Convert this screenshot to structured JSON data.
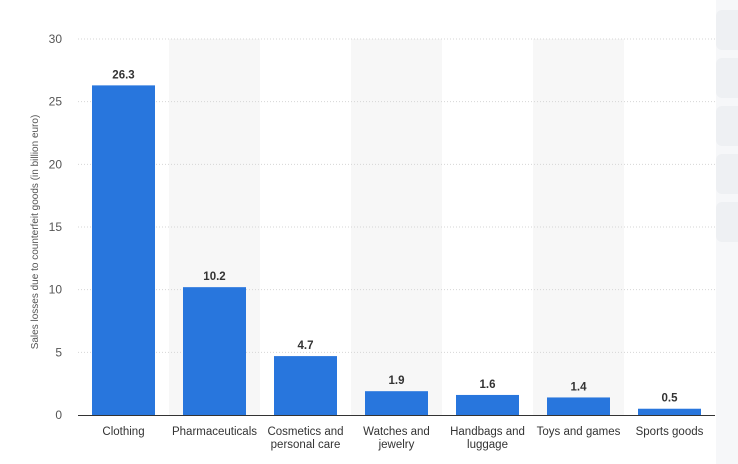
{
  "chart_data": {
    "type": "bar",
    "categories": [
      "Clothing",
      "Pharmaceuticals",
      "Cosmetics and personal care",
      "Watches and jewelry",
      "Handbags and luggage",
      "Toys and games",
      "Sports goods"
    ],
    "category_lines": [
      [
        "Clothing"
      ],
      [
        "Pharmaceuticals"
      ],
      [
        "Cosmetics and",
        "personal care"
      ],
      [
        "Watches and",
        "jewelry"
      ],
      [
        "Handbags and",
        "luggage"
      ],
      [
        "Toys and games"
      ],
      [
        "Sports goods"
      ]
    ],
    "values": [
      26.3,
      10.2,
      4.7,
      1.9,
      1.6,
      1.4,
      0.5
    ],
    "data_labels": [
      "26.3",
      "10.2",
      "4.7",
      "1.9",
      "1.6",
      "1.4",
      "0.5"
    ],
    "title": "",
    "xlabel": "",
    "ylabel": "Sales losses due to counterfeit goods (in billion euro)",
    "ylim": [
      0,
      30
    ],
    "yticks": [
      0,
      5,
      10,
      15,
      20,
      25,
      30
    ],
    "grid": true,
    "legend": "none",
    "colors": {
      "bar": "#2876dd",
      "alt_band": "#f7f7f7",
      "grid": "#d6d6d6",
      "axis": "#333333"
    }
  }
}
